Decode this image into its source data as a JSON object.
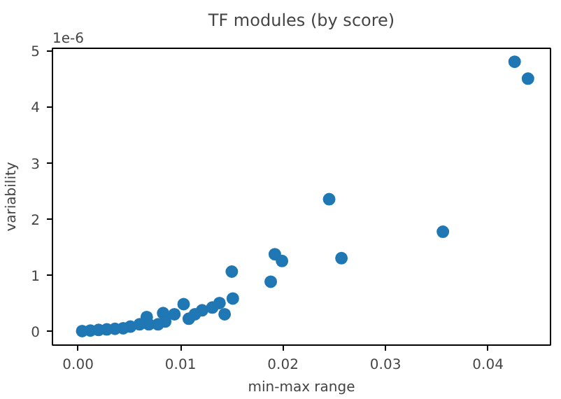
{
  "chart_data": {
    "type": "scatter",
    "title": "TF modules (by score)",
    "xlabel": "min-max range",
    "ylabel": "variability",
    "annotations": [
      "1e-6"
    ],
    "x": [
      0.0426,
      0.0439,
      0.0356,
      0.0245,
      0.0257,
      0.0192,
      0.0199,
      0.0188,
      0.015,
      0.0151,
      0.0143,
      0.0138,
      0.0131,
      0.0121,
      0.0114,
      0.0103,
      0.0108,
      0.0094,
      0.0083,
      0.0085,
      0.0067,
      0.0069,
      0.006,
      0.0051,
      0.0044,
      0.0036,
      0.0028,
      0.002,
      0.0012,
      0.0004,
      0.0078
    ],
    "values": [
      4.8,
      4.5,
      1.77,
      2.35,
      1.3,
      1.37,
      1.25,
      0.88,
      1.06,
      0.58,
      0.3,
      0.5,
      0.42,
      0.37,
      0.3,
      0.48,
      0.22,
      0.3,
      0.32,
      0.17,
      0.25,
      0.12,
      0.12,
      0.08,
      0.05,
      0.04,
      0.03,
      0.02,
      0.01,
      0.0,
      0.12
    ],
    "color": "#1f77b4",
    "marker": "circle",
    "grid": false,
    "xlim": [
      -0.0025,
      0.0461
    ],
    "xticks": [
      {
        "value": 0.0,
        "label": "0.00"
      },
      0.01,
      0.02,
      0.03,
      0.04
    ],
    "ylim": [
      -0.25,
      5.04
    ],
    "yticks": [
      0,
      1,
      2,
      3,
      4,
      5
    ]
  }
}
